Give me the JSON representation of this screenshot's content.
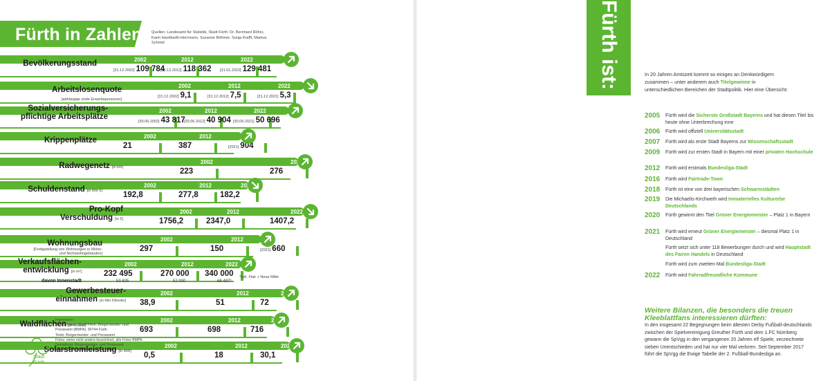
{
  "left": {
    "title": "Fürth in Zahlen",
    "sources": "Quellen: Landesamt für Statistik, Stadt Fürth: Dr. Bernhard Röhrs, Karin Hackbarth-Herrmann, Susanne Böhmer, Sonja Krafft, Markus Schmid",
    "rows": [
      {
        "label": "Bevölkerungsstand",
        "sub": "",
        "unit": "",
        "y1": "2002",
        "d1": "[31.12.2002]",
        "v1": "109 784",
        "y2": "2012",
        "d2": "[31.12.2012]",
        "v2": "118 362",
        "y3": "2022",
        "d3": "[31.01.2022]",
        "v3": "129 481",
        "trend": "up"
      },
      {
        "label": "Arbeitslosenquote",
        "sub": "[abhängige zivile Erwerbspersonen]",
        "unit": "",
        "y1": "2002",
        "d1": "[31.12.2002]",
        "v1": "9,1",
        "y2": "2012",
        "d2": "[31.12.2012]",
        "v2": "7,5",
        "y3": "2022",
        "d3": "[31.12.2021]",
        "v3": "5,3",
        "trend": "down"
      },
      {
        "label": "Sozialversicherungs-",
        "label2": "pflichtige Arbeitsplätze",
        "sub": "",
        "unit": "",
        "y1": "2002",
        "d1": "[30.06.2002]",
        "v1": "43 817",
        "y2": "2012",
        "d2": "[30.06.2012]",
        "v2": "40 904",
        "y3": "2022",
        "d3": "[30.09.2021]",
        "v3": "50 696",
        "trend": "up"
      },
      {
        "label": "Krippenplätze",
        "sub": "",
        "unit": "",
        "y1": "2002",
        "d1": "",
        "v1": "21",
        "y2": "2012",
        "d2": "",
        "v2": "387",
        "y3": "2022",
        "d3": "[2021]",
        "v3": "904",
        "trend": "up"
      },
      {
        "label": "Radwegenetz",
        "sub": "",
        "unit": "[in km]",
        "y1": "",
        "d1": "",
        "v1": "",
        "y2": "2002",
        "d2": "",
        "v2": "223",
        "y3": "2022",
        "d3": "",
        "v3": "276",
        "trend": "up"
      },
      {
        "label": "Schuldenstand",
        "sub": "",
        "unit": "[in Mio €]",
        "y1": "2002",
        "d1": "",
        "v1": "192,8",
        "y2": "2012",
        "d2": "",
        "v2": "277,8",
        "y3": "2022",
        "d3": "",
        "v3": "182,2",
        "trend": "down"
      },
      {
        "label": "Pro-Kopf",
        "label2": "Verschuldung",
        "sub": "",
        "unit": "[in €]",
        "y1": "2002",
        "d1": "",
        "v1": "1756,2",
        "y2": "2012",
        "d2": "",
        "v2": "2347,0",
        "y3": "2022",
        "d3": "",
        "v3": "1407,2",
        "trend": "down"
      },
      {
        "label": "Wohnungsbau",
        "sub": "[Fertigstellung von Wohnungen in Wohn- und Nichtwohngebäuden]",
        "unit": "",
        "y1": "2002",
        "d1": "",
        "v1": "297",
        "y2": "2012",
        "d2": "",
        "v2": "150",
        "y3": "2022",
        "d3": "[2021]",
        "v3": "660",
        "trend": "up"
      },
      {
        "label": "Verkaufsflächen-",
        "label2": "entwicklung",
        "sub": "davon Innenstadt",
        "unit": "[in m²]",
        "y1": "2002",
        "d1": "",
        "v1": "232 495",
        "v1b": "53 825",
        "y2": "2012",
        "d2": "",
        "v2": "270 000",
        "v2b": "52 000",
        "y3": "2022",
        "d3": "",
        "v3": "340 000",
        "v3b": "68 497*",
        "note": "*inkl. Flair + Neue Mitte",
        "trend": "up"
      },
      {
        "label": "Gewerbesteuer-",
        "label2": "einnahmen",
        "sub": "",
        "unit": "[in Mio €/brutto]",
        "y1": "2002",
        "d1": "",
        "v1": "38,9",
        "y2": "2012",
        "d2": "",
        "v2": "51",
        "y3": "2022",
        "d3": "",
        "v3": "72",
        "trend": "up"
      },
      {
        "label": "Waldflächen",
        "sub": "",
        "unit": "[in Hektar]",
        "y1": "2002",
        "d1": "",
        "v1": "693",
        "y2": "2012",
        "d2": "",
        "v2": "698",
        "y3": "2022",
        "d3": "",
        "v3": "716",
        "trend": "up"
      },
      {
        "label": "Solarstromleistung",
        "sub": "",
        "unit": "[in MW]",
        "y1": "2002",
        "d1": "",
        "v1": "0,5",
        "y2": "2012",
        "d2": "",
        "v2": "18",
        "y3": "2022",
        "d3": "",
        "v3": "30,1",
        "trend": "up"
      }
    ],
    "impressum": {
      "heading": "Impressum",
      "lines": [
        "Herausgeber: Stadt Fürth, Bürgermeister- und",
        "Presseamt (BMPA), 90744 Fürth",
        "Texte: Bürgermeister- und Presseamt",
        "Fotos: wenn nicht anders bezeichnet, alle Fotos BMPA",
        "Gestaltung: Bürgermeister- und Presseamt",
        "Druck: Druckerei Fleßa, 90763 Fürth"
      ]
    },
    "logo_text": [
      "Stadt",
      "Fürth"
    ]
  },
  "right": {
    "tab_title": "Fürth ist:",
    "intro_parts": [
      "In 20 Jahren Amtszeit kommt so einiges an Denkwürdigem zusammen – unter anderem auch ",
      "Titelgewinne",
      " in unterschiedlichen Bereichen der Stadtpolitik. Hier eine Übersicht:"
    ],
    "timeline": [
      {
        "year": "2005",
        "pre": "Fürth wird die ",
        "hl": "Sicherste Großstadt Bayerns",
        "post": " und hat diesen Titel bis heute ohne Unterbrechung inne"
      },
      {
        "year": "2006",
        "pre": "Fürth wird offiziell ",
        "hl": "Universitätsstadt",
        "post": ""
      },
      {
        "year": "2007",
        "pre": "Fürth wird als erste Stadt Bayerns zur ",
        "hl": "Wissenschaftsstadt",
        "post": ""
      },
      {
        "year": "2009",
        "pre": "Fürth wird zur ersten Stadt in Bayern mit einer ",
        "hl": "privaten Hochschule",
        "post": ""
      },
      {
        "year": "2012",
        "pre": "Fürth wird erstmals ",
        "hl": "Bundesliga-Stadt",
        "post": ""
      },
      {
        "year": "2016",
        "pre": "Fürth wird ",
        "hl": "Fairtrade-Town",
        "post": ""
      },
      {
        "year": "2018",
        "pre": "Fürth ist eine von drei bayerischen ",
        "hl": "Schwarmstädten",
        "post": ""
      },
      {
        "year": "2019",
        "pre": "Die Michaelis-Kirchweih wird ",
        "hl": "Immaterielles Kulturerbe Deutschlands",
        "post": ""
      },
      {
        "year": "2020",
        "pre": "Fürth gewinnt den Titel ",
        "hl": "Grüner Energiemeister",
        "post": " – Platz 1 in Bayern"
      },
      {
        "year": "2021",
        "pre": "Fürth wird erneut ",
        "hl": "Grüner Energiemeister",
        "post": " – diesmal Platz 1 in Deutschland"
      },
      {
        "year": "",
        "pre": "Fürth setzt sich unter 118 Bewerbungen durch und wird ",
        "hl": "Hauptstadt des Fairen Handels",
        "post": " in Deutschland"
      },
      {
        "year": "",
        "pre": "Fürth wird zum zweiten Mal ",
        "hl": "Bundesliga-Stadt",
        "post": ""
      },
      {
        "year": "2022",
        "pre": "Fürth wird ",
        "hl": "Fahrradfreundliche Kommune",
        "post": ""
      }
    ],
    "bilanz_title": "Weitere Bilanzen, die besonders die treuen Kleeblattfans interessieren dürften:",
    "bilanz_text": "In den insgesamt 22 Begegnungen beim ältesten Derby Fußball-deutschlands zwischen der Spielvereinigung Greuther Fürth und dem 1.FC Nürnberg gewann die SpVgg in den vergangenen 20 Jahren elf Spiele, verzeichnete sieben Unentschieden und hat nur vier Mal verloren. Seit September 2017 führt die SpVgg die Ewige Tabelle der 2. Fußball-Bundesliga an."
  },
  "colors": {
    "green": "#5cb531",
    "text": "#1a1a1a"
  }
}
